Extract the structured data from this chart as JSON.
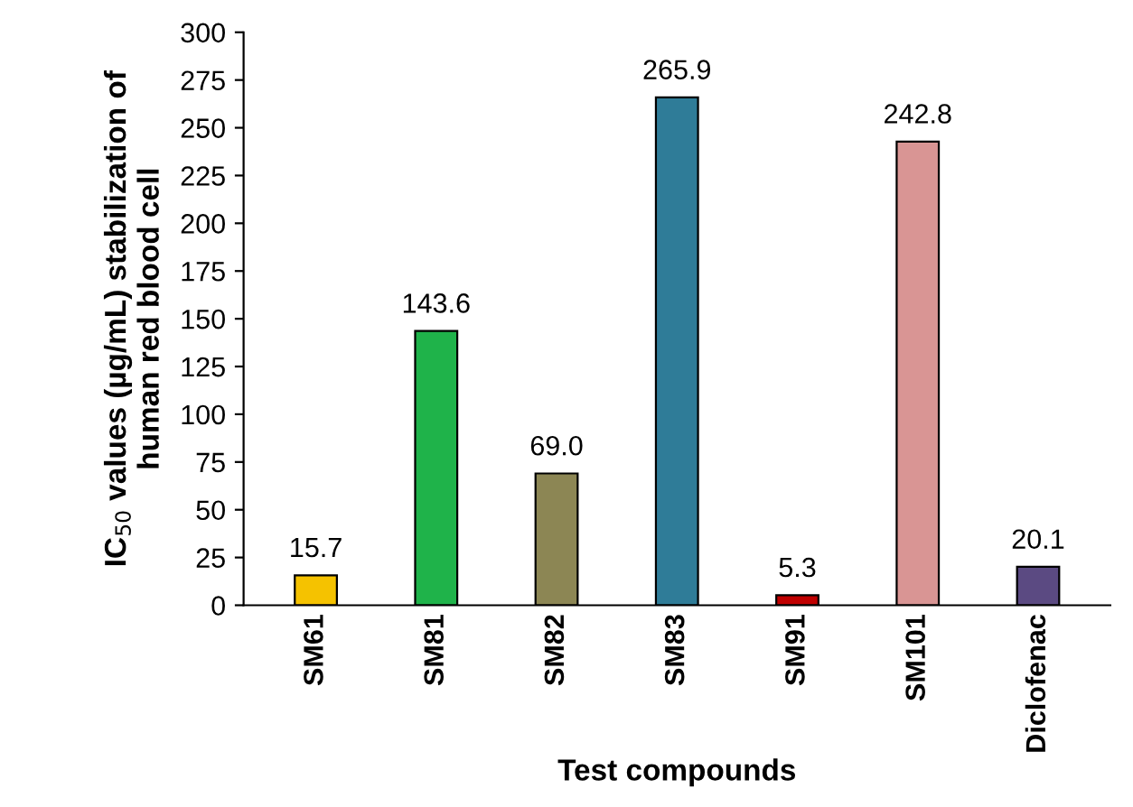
{
  "chart_data": {
    "type": "bar",
    "xlabel": "Test compounds",
    "ylabel": "IC$_{50}$ values (µg/mL) stabilization of\nhuman red blood cell",
    "categories": [
      "SM61",
      "SM81",
      "SM82",
      "SM83",
      "SM91",
      "SM101",
      "Diclofenac"
    ],
    "values": [
      15.7,
      143.6,
      69.0,
      265.9,
      5.3,
      242.8,
      20.1
    ],
    "value_labels": [
      "15.7",
      "143.6",
      "69.0",
      "265.9",
      "5.3",
      "242.8",
      "20.1"
    ],
    "colors": [
      "#f5c200",
      "#1fb34a",
      "#8c8654",
      "#2f7c98",
      "#c00000",
      "#d99594",
      "#5b4a82"
    ],
    "ylim": [
      0,
      300
    ],
    "yticks": [
      0,
      25,
      50,
      75,
      100,
      125,
      150,
      175,
      200,
      225,
      250,
      275,
      300
    ],
    "grid": false,
    "legend": false
  }
}
